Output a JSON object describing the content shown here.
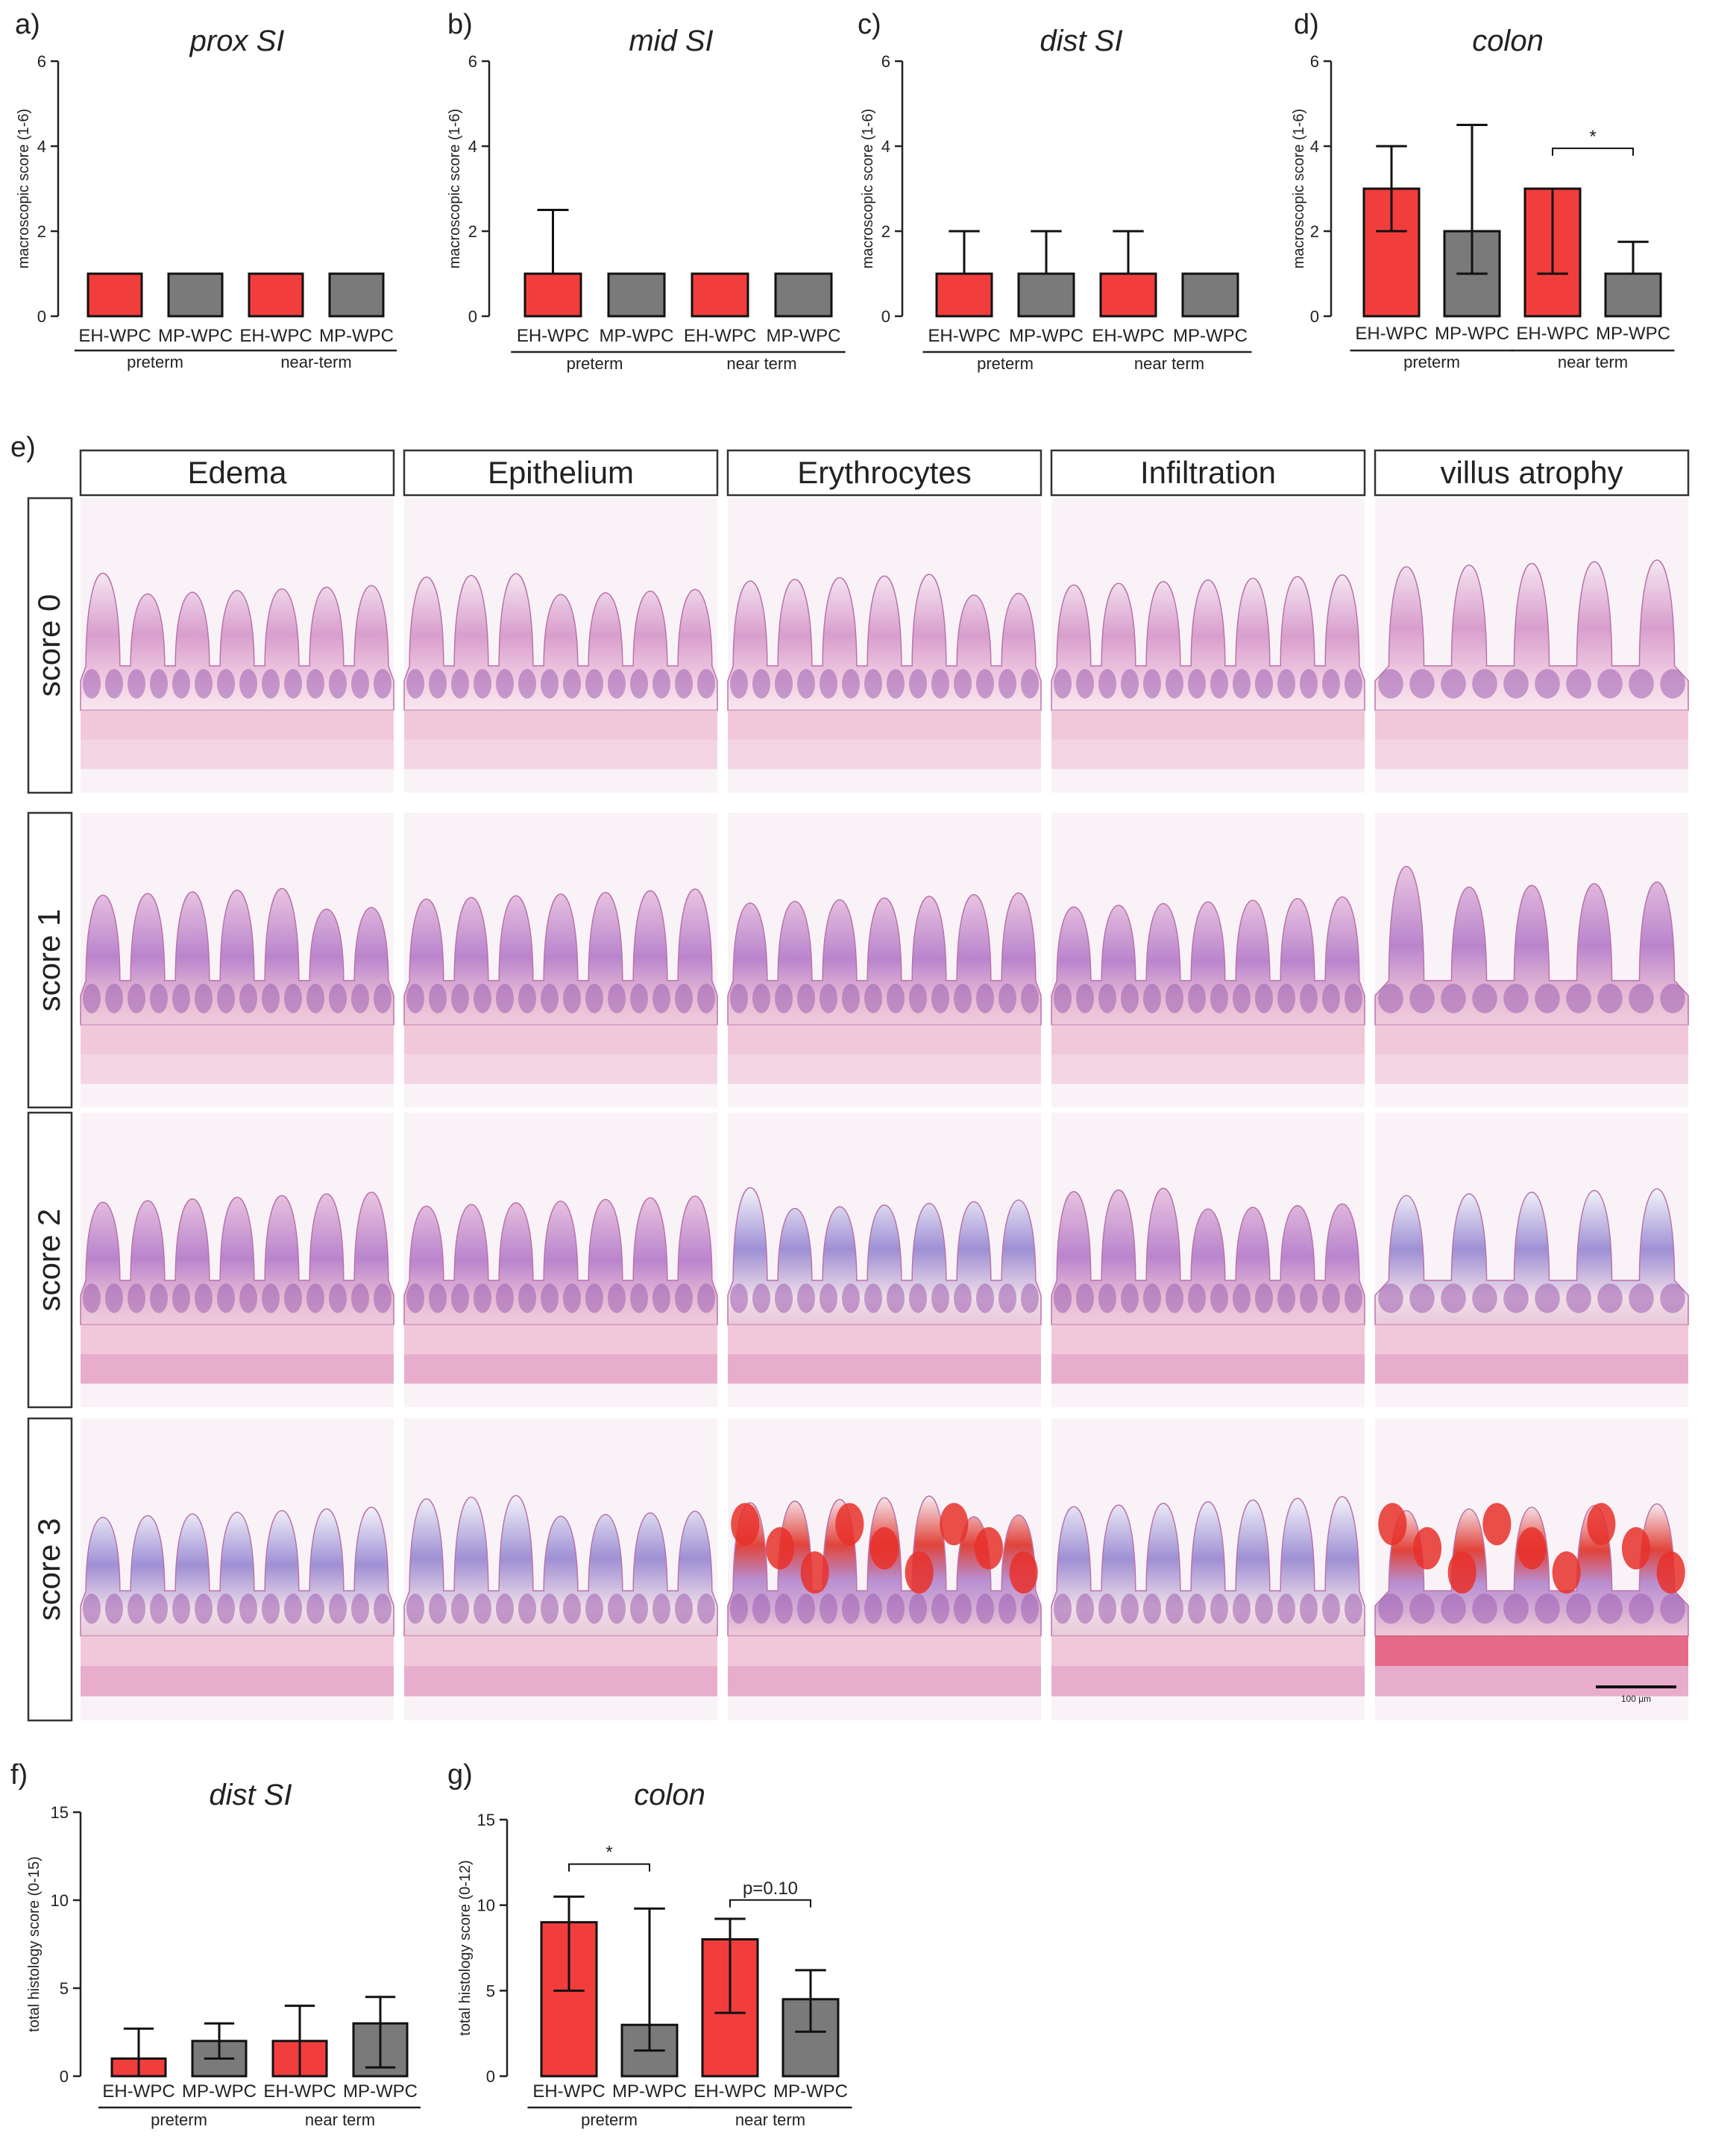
{
  "colors": {
    "eh_wpc": "#f23d3d",
    "mp_wpc": "#7a7a7a",
    "axis": "#222222"
  },
  "chart_data": [
    {
      "panel": "a)",
      "type": "bar",
      "title": "prox SI",
      "ylabel": "macroscopic score (1-6)",
      "ylim": [
        0,
        6
      ],
      "yticks": [
        0,
        2,
        4,
        6
      ],
      "categories": [
        "EH-WPC",
        "MP-WPC",
        "EH-WPC",
        "MP-WPC"
      ],
      "groups": [
        "preterm",
        "near-term"
      ],
      "values": [
        1,
        1,
        1,
        1
      ],
      "errors": [
        null,
        null,
        null,
        null
      ],
      "colors": [
        "#f23d3d",
        "#7a7a7a",
        "#f23d3d",
        "#7a7a7a"
      ],
      "annotations": []
    },
    {
      "panel": "b)",
      "type": "bar",
      "title": "mid SI",
      "ylabel": "macroscopic score (1-6)",
      "ylim": [
        0,
        6
      ],
      "yticks": [
        0,
        2,
        4,
        6
      ],
      "categories": [
        "EH-WPC",
        "MP-WPC",
        "EH-WPC",
        "MP-WPC"
      ],
      "groups": [
        "preterm",
        "near term"
      ],
      "values": [
        1,
        1,
        1,
        1
      ],
      "errors": [
        [
          1,
          2.5
        ],
        null,
        null,
        null
      ],
      "colors": [
        "#f23d3d",
        "#7a7a7a",
        "#f23d3d",
        "#7a7a7a"
      ],
      "annotations": []
    },
    {
      "panel": "c)",
      "type": "bar",
      "title": "dist SI",
      "ylabel": "macroscopic score (1-6)",
      "ylim": [
        0,
        6
      ],
      "yticks": [
        0,
        2,
        4,
        6
      ],
      "categories": [
        "EH-WPC",
        "MP-WPC",
        "EH-WPC",
        "MP-WPC"
      ],
      "groups": [
        "preterm",
        "near term"
      ],
      "values": [
        1,
        1,
        1,
        1
      ],
      "errors": [
        [
          1,
          2
        ],
        [
          1,
          2
        ],
        [
          1,
          2
        ],
        null
      ],
      "colors": [
        "#f23d3d",
        "#7a7a7a",
        "#f23d3d",
        "#7a7a7a"
      ],
      "annotations": []
    },
    {
      "panel": "d)",
      "type": "bar",
      "title": "colon",
      "ylabel": "macroscopic score (1-6)",
      "ylim": [
        0,
        6
      ],
      "yticks": [
        0,
        2,
        4,
        6
      ],
      "categories": [
        "EH-WPC",
        "MP-WPC",
        "EH-WPC",
        "MP-WPC"
      ],
      "groups": [
        "preterm",
        "near term"
      ],
      "values": [
        3,
        2,
        3,
        1
      ],
      "errors": [
        [
          2,
          4
        ],
        [
          1,
          4.5
        ],
        [
          1,
          3
        ],
        [
          1,
          1.75
        ]
      ],
      "colors": [
        "#f23d3d",
        "#7a7a7a",
        "#f23d3d",
        "#7a7a7a"
      ],
      "annotations": [
        {
          "from": 2,
          "to": 3,
          "y": 3.95,
          "text": "*"
        }
      ]
    },
    {
      "panel": "f)",
      "type": "bar",
      "title": "dist SI",
      "ylabel": "total histology score (0-15)",
      "ylim": [
        0,
        15
      ],
      "yticks": [
        0,
        5,
        10,
        15
      ],
      "categories": [
        "EH-WPC",
        "MP-WPC",
        "EH-WPC",
        "MP-WPC"
      ],
      "groups": [
        "preterm",
        "near term"
      ],
      "values": [
        1,
        2,
        2,
        3
      ],
      "errors": [
        [
          0,
          2.7
        ],
        [
          1,
          3
        ],
        [
          0,
          4
        ],
        [
          0.5,
          4.5
        ]
      ],
      "colors": [
        "#f23d3d",
        "#7a7a7a",
        "#f23d3d",
        "#7a7a7a"
      ],
      "annotations": []
    },
    {
      "panel": "g)",
      "type": "bar",
      "title": "colon",
      "ylabel": "total histology score (0-12)",
      "ylim": [
        0,
        15
      ],
      "yticks": [
        0,
        5,
        10,
        15
      ],
      "categories": [
        "EH-WPC",
        "MP-WPC",
        "EH-WPC",
        "MP-WPC"
      ],
      "groups": [
        "preterm",
        "near term"
      ],
      "values": [
        9,
        3,
        8,
        4.5
      ],
      "errors": [
        [
          5,
          10.5
        ],
        [
          1.5,
          9.8
        ],
        [
          3.7,
          9.2
        ],
        [
          2.6,
          6.2
        ]
      ],
      "colors": [
        "#f23d3d",
        "#7a7a7a",
        "#f23d3d",
        "#7a7a7a"
      ],
      "annotations": [
        {
          "from": 0,
          "to": 1,
          "y": 12.4,
          "text": "*"
        },
        {
          "from": 2,
          "to": 3,
          "y": 10.3,
          "text": "p=0.10"
        }
      ]
    }
  ],
  "histology": {
    "panel": "e)",
    "columns": [
      "Edema",
      "Epithelium",
      "Erythrocytes",
      "Infiltration",
      "villus atrophy"
    ],
    "rows": [
      "score 0",
      "score 1",
      "score 2",
      "score 3"
    ],
    "scale_bar": "100 µm"
  }
}
